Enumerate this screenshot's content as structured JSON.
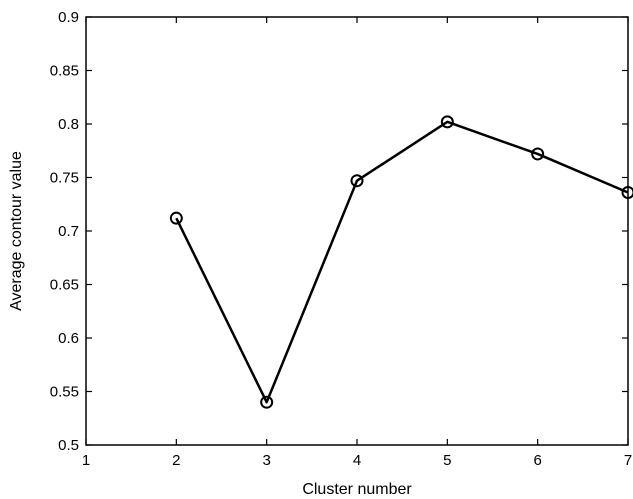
{
  "chart_data": {
    "type": "line",
    "title": "",
    "xlabel": "Cluster number",
    "ylabel": "Average contour value",
    "xlim": [
      1,
      7
    ],
    "ylim": [
      0.5,
      0.9
    ],
    "x_ticks": [
      "1",
      "2",
      "3",
      "4",
      "5",
      "6",
      "7"
    ],
    "y_ticks": [
      "0.5",
      "0.55",
      "0.6",
      "0.65",
      "0.7",
      "0.75",
      "0.8",
      "0.85",
      "0.9"
    ],
    "grid": false,
    "legend": "none",
    "marker": "circle-open",
    "line_color": "#000000",
    "series": [
      {
        "x": [
          2,
          3,
          4,
          5,
          6,
          7
        ],
        "values": [
          0.712,
          0.54,
          0.747,
          0.802,
          0.772,
          0.736
        ]
      }
    ]
  }
}
